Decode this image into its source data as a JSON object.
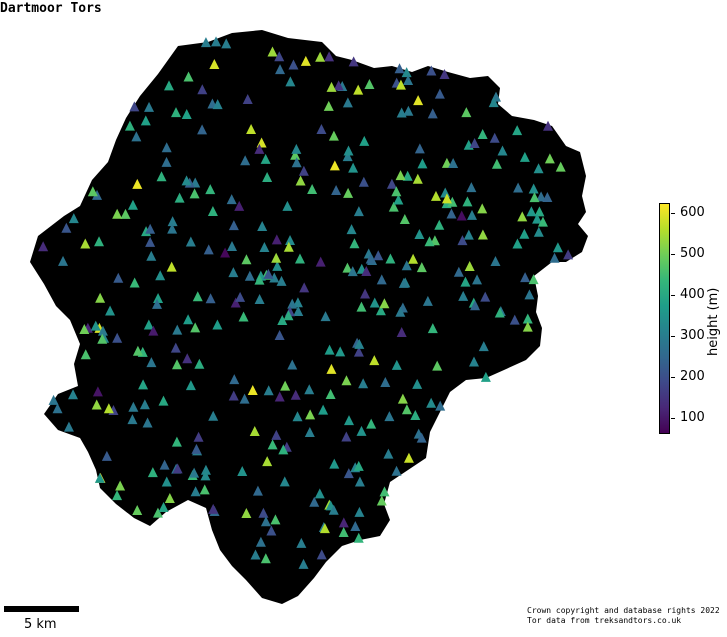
{
  "title": "Dartmoor Tors",
  "scale_label": "5 km",
  "colorbar": {
    "label": "height (m)",
    "ticks": [
      "100",
      "200",
      "300",
      "400",
      "500",
      "600"
    ],
    "tick_values": [
      100,
      200,
      300,
      400,
      500,
      600
    ],
    "range": [
      60,
      625
    ],
    "colormap": [
      "#440154",
      "#482878",
      "#3e4989",
      "#31688e",
      "#26828e",
      "#1f9e89",
      "#35b779",
      "#6ece58",
      "#b5de2b",
      "#fde725"
    ]
  },
  "credit": {
    "line1": "Crown copyright and database rights 2022",
    "line2": "Tor data from treksandtors.co.uk"
  },
  "colors": {
    "background": "#ffffff",
    "land": "#000000"
  },
  "marker": "triangle",
  "tor_heights_m": [
    460,
    470,
    420,
    380,
    350,
    420,
    520,
    470,
    300,
    450,
    430,
    480,
    440,
    500,
    460,
    520,
    540,
    600,
    570,
    560,
    550,
    480,
    460,
    540,
    420,
    460,
    390,
    400,
    350,
    430,
    400,
    380,
    300,
    380,
    420,
    440,
    430,
    360,
    320,
    340,
    360,
    310,
    300,
    290,
    280,
    260,
    290,
    300,
    310,
    300,
    290,
    300,
    320,
    340,
    300,
    310,
    300,
    290,
    350,
    380,
    400,
    420,
    430,
    460,
    470,
    430,
    410,
    380,
    350,
    330,
    340,
    320,
    300,
    300,
    270,
    260,
    280,
    300,
    310,
    300,
    320,
    300,
    290,
    280,
    300,
    300,
    290,
    270,
    250,
    240,
    270,
    280,
    300,
    320,
    280,
    300,
    290,
    280,
    260,
    260,
    240,
    250,
    260,
    300,
    320,
    290,
    270,
    290,
    290,
    300,
    310,
    300,
    310,
    290,
    280,
    270,
    250,
    260,
    200,
    190,
    180,
    170,
    200,
    230,
    250,
    280,
    300,
    290,
    280,
    280,
    260,
    240,
    230,
    210,
    190,
    180,
    170,
    160,
    150,
    130,
    140,
    120,
    110,
    200,
    230,
    240,
    250,
    260,
    300,
    350,
    440,
    460,
    430,
    410,
    380,
    360,
    340,
    300,
    280,
    260,
    240,
    220,
    200,
    180,
    160,
    150,
    140,
    130,
    170,
    190,
    210,
    230,
    250,
    270,
    300,
    330,
    360,
    380,
    400,
    420,
    450,
    470,
    490,
    510,
    530,
    480,
    470,
    460,
    450,
    420,
    400,
    380,
    370,
    360,
    350,
    340,
    330,
    310,
    300,
    290,
    280,
    270,
    260,
    240,
    230,
    210,
    200,
    190,
    180,
    170,
    160,
    150,
    140,
    130,
    120,
    110,
    100,
    90,
    80,
    70,
    300,
    320,
    340,
    360,
    380,
    400,
    420,
    440,
    460,
    480,
    500,
    520,
    540,
    560,
    580,
    600,
    610,
    620,
    590,
    570,
    550,
    530,
    510,
    490,
    470,
    450,
    430,
    410,
    390,
    370,
    350,
    330,
    310,
    290,
    270,
    250,
    230,
    210,
    190,
    170,
    520,
    540,
    500,
    480,
    460,
    440,
    420,
    400,
    380,
    360,
    340,
    320,
    300,
    280,
    260,
    240,
    220,
    200,
    180,
    160,
    300,
    280,
    260,
    300,
    320,
    340,
    360,
    380,
    400,
    420,
    300,
    280,
    260,
    240,
    220,
    250,
    270,
    290,
    310,
    330,
    350,
    370,
    390,
    410,
    430,
    450,
    470,
    490,
    510,
    530,
    550,
    570,
    590,
    610,
    450,
    430,
    410,
    390,
    370,
    350,
    330,
    310,
    290,
    270,
    250,
    230,
    210,
    190,
    170,
    150,
    130,
    110,
    300,
    310,
    320,
    330,
    340,
    350,
    360,
    370,
    380,
    390,
    400,
    410,
    420,
    430,
    440,
    450,
    460,
    470,
    480,
    490,
    500,
    510,
    520,
    530,
    540,
    550,
    560,
    570,
    300,
    290,
    280,
    270,
    260,
    250,
    240,
    230,
    220,
    210,
    200,
    190,
    180,
    170,
    160,
    150,
    140,
    130,
    120,
    110,
    420,
    430,
    440,
    450,
    460,
    470,
    480,
    490,
    500,
    510,
    520,
    530,
    540,
    550,
    560,
    570,
    580,
    590,
    600,
    610
  ]
}
